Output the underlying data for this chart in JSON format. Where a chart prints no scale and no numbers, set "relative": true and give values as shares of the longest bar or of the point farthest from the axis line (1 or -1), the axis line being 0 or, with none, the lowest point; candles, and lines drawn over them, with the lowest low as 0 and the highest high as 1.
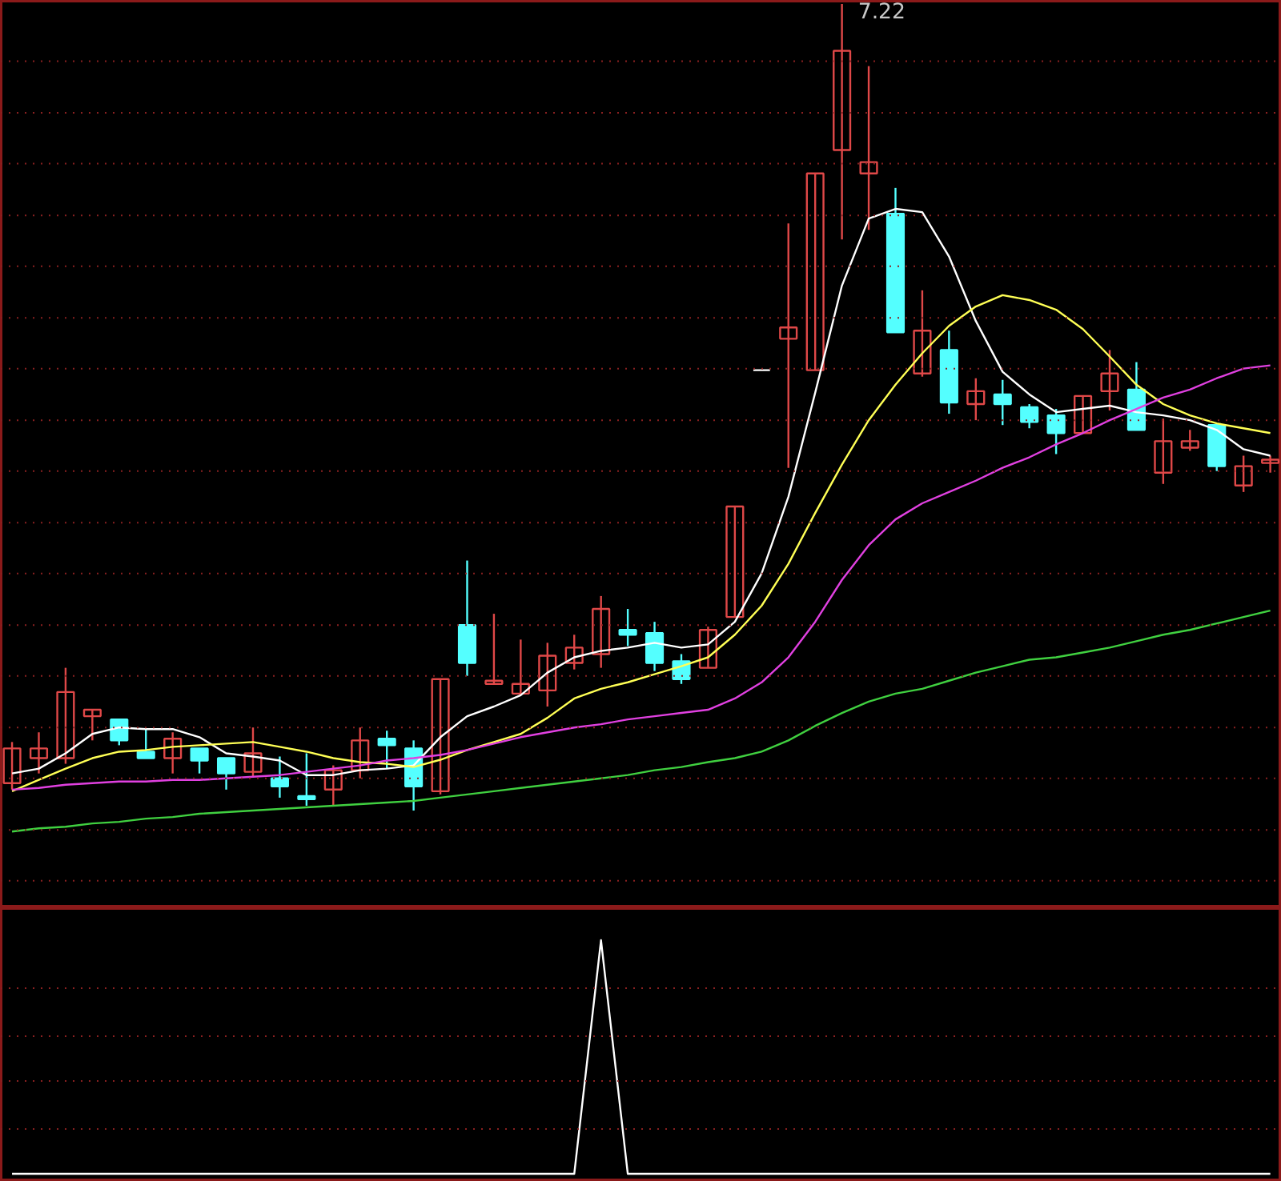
{
  "chart_data": [
    {
      "type": "candlestick",
      "relative": true,
      "ref_lines": [
        {
          "axis": "y",
          "value": -0.087,
          "color": "#8a2020",
          "line_style": "dotted"
        },
        {
          "axis": "y",
          "value": -0.024,
          "color": "#8a2020",
          "line_style": "dotted"
        },
        {
          "axis": "y",
          "value": 0.04,
          "color": "#8a2020",
          "line_style": "dotted"
        },
        {
          "axis": "y",
          "value": 0.103,
          "color": "#8a2020",
          "line_style": "dotted"
        },
        {
          "axis": "y",
          "value": 0.167,
          "color": "#8a2020",
          "line_style": "dotted"
        },
        {
          "axis": "y",
          "value": 0.23,
          "color": "#8a2020",
          "line_style": "dotted"
        },
        {
          "axis": "y",
          "value": 0.294,
          "color": "#8a2020",
          "line_style": "dotted"
        },
        {
          "axis": "y",
          "value": 0.357,
          "color": "#8a2020",
          "line_style": "dotted"
        },
        {
          "axis": "y",
          "value": 0.421,
          "color": "#8a2020",
          "line_style": "dotted"
        },
        {
          "axis": "y",
          "value": 0.484,
          "color": "#8a2020",
          "line_style": "dotted"
        },
        {
          "axis": "y",
          "value": 0.548,
          "color": "#8a2020",
          "line_style": "dotted"
        },
        {
          "axis": "y",
          "value": 0.611,
          "color": "#8a2020",
          "line_style": "dotted"
        },
        {
          "axis": "y",
          "value": 0.675,
          "color": "#8a2020",
          "line_style": "dotted"
        },
        {
          "axis": "y",
          "value": 0.738,
          "color": "#8a2020",
          "line_style": "dotted"
        },
        {
          "axis": "y",
          "value": 0.802,
          "color": "#8a2020",
          "line_style": "dotted"
        },
        {
          "axis": "y",
          "value": 0.865,
          "color": "#8a2020",
          "line_style": "dotted"
        },
        {
          "axis": "y",
          "value": 0.929,
          "color": "#8a2020",
          "line_style": "dotted"
        }
      ],
      "categories": [
        null,
        null,
        null,
        null,
        null,
        null,
        null,
        null,
        null,
        null,
        null,
        null,
        null,
        null,
        null,
        null,
        null,
        null,
        null,
        null,
        null,
        null,
        null,
        null,
        null,
        null,
        null,
        null,
        null,
        null,
        null,
        null,
        null,
        null,
        null,
        null,
        null,
        null,
        null,
        null,
        null,
        null,
        null,
        null,
        null,
        null,
        null,
        null
      ],
      "ohlc": [
        [
          0.034,
          0.085,
          0.026,
          0.077
        ],
        [
          0.065,
          0.097,
          0.046,
          0.077
        ],
        [
          0.065,
          0.177,
          0.058,
          0.147
        ],
        [
          0.117,
          0.125,
          0.087,
          0.125
        ],
        [
          0.113,
          0.113,
          0.081,
          0.087
        ],
        [
          0.073,
          0.101,
          0.065,
          0.065
        ],
        [
          0.065,
          0.097,
          0.046,
          0.089
        ],
        [
          0.077,
          0.077,
          0.046,
          0.062
        ],
        [
          0.065,
          0.065,
          0.026,
          0.046
        ],
        [
          0.048,
          0.103,
          0.042,
          0.071
        ],
        [
          0.04,
          0.067,
          0.016,
          0.03
        ],
        [
          0.018,
          0.071,
          0.006,
          0.014
        ],
        [
          0.026,
          0.056,
          0.006,
          0.05
        ],
        [
          0.05,
          0.103,
          0.04,
          0.087
        ],
        [
          0.089,
          0.099,
          0.052,
          0.081
        ],
        [
          0.077,
          0.087,
          0.0,
          0.03
        ],
        [
          0.024,
          0.163,
          0.02,
          0.163
        ],
        [
          0.23,
          0.31,
          0.167,
          0.183
        ],
        [
          0.157,
          0.244,
          0.157,
          0.161
        ],
        [
          0.145,
          0.212,
          0.145,
          0.157
        ],
        [
          0.149,
          0.208,
          0.129,
          0.192
        ],
        [
          0.183,
          0.218,
          0.175,
          0.202
        ],
        [
          0.194,
          0.266,
          0.177,
          0.25
        ],
        [
          0.224,
          0.25,
          0.204,
          0.218
        ],
        [
          0.22,
          0.234,
          0.173,
          0.183
        ],
        [
          0.185,
          0.194,
          0.157,
          0.163
        ],
        [
          0.177,
          0.228,
          0.177,
          0.224
        ],
        [
          0.24,
          0.377,
          0.24,
          0.377
        ],
        [
          0.546,
          0.546,
          0.546,
          0.546
        ],
        [
          0.585,
          0.728,
          0.425,
          0.599
        ],
        [
          0.546,
          0.79,
          0.546,
          0.79
        ],
        [
          0.819,
          1.0,
          0.708,
          0.942
        ],
        [
          0.79,
          0.923,
          0.72,
          0.804
        ],
        [
          0.74,
          0.772,
          0.593,
          0.593
        ],
        [
          0.542,
          0.645,
          0.538,
          0.595
        ],
        [
          0.571,
          0.595,
          0.492,
          0.506
        ],
        [
          0.504,
          0.536,
          0.484,
          0.52
        ],
        [
          0.516,
          0.534,
          0.478,
          0.504
        ],
        [
          0.5,
          0.504,
          0.474,
          0.482
        ],
        [
          0.49,
          0.498,
          0.442,
          0.468
        ],
        [
          0.468,
          0.514,
          0.468,
          0.514
        ],
        [
          0.52,
          0.571,
          0.496,
          0.542
        ],
        [
          0.522,
          0.556,
          0.472,
          0.472
        ],
        [
          0.419,
          0.486,
          0.405,
          0.458
        ],
        [
          0.45,
          0.472,
          0.446,
          0.458
        ],
        [
          0.478,
          0.478,
          0.421,
          0.427
        ],
        [
          0.403,
          0.44,
          0.395,
          0.427
        ],
        [
          0.431,
          0.44,
          0.419,
          0.435
        ]
      ],
      "series": [
        {
          "type": "line",
          "color": "#ffffff",
          "values": [
            0.046,
            0.052,
            0.071,
            0.095,
            0.103,
            0.101,
            0.101,
            0.091,
            0.071,
            0.067,
            0.062,
            0.044,
            0.044,
            0.05,
            0.052,
            0.056,
            0.091,
            0.117,
            0.129,
            0.143,
            0.171,
            0.19,
            0.198,
            0.202,
            0.208,
            0.202,
            0.206,
            0.234,
            0.294,
            0.389,
            0.518,
            0.651,
            0.734,
            0.746,
            0.742,
            0.687,
            0.607,
            0.544,
            0.516,
            0.494,
            0.498,
            0.502,
            0.494,
            0.49,
            0.484,
            0.472,
            0.448,
            0.44
          ]
        },
        {
          "type": "line",
          "color": "#ffff55",
          "values": [
            0.024,
            0.038,
            0.052,
            0.065,
            0.073,
            0.075,
            0.079,
            0.081,
            0.083,
            0.085,
            0.079,
            0.073,
            0.065,
            0.06,
            0.058,
            0.054,
            0.063,
            0.075,
            0.085,
            0.095,
            0.115,
            0.139,
            0.151,
            0.159,
            0.169,
            0.179,
            0.19,
            0.218,
            0.254,
            0.306,
            0.369,
            0.429,
            0.484,
            0.528,
            0.567,
            0.601,
            0.625,
            0.639,
            0.633,
            0.621,
            0.597,
            0.563,
            0.528,
            0.504,
            0.49,
            0.48,
            0.474,
            0.468
          ]
        },
        {
          "type": "line",
          "color": "#e040e0",
          "values": [
            0.026,
            0.028,
            0.032,
            0.034,
            0.036,
            0.036,
            0.038,
            0.038,
            0.04,
            0.042,
            0.044,
            0.048,
            0.052,
            0.056,
            0.062,
            0.065,
            0.069,
            0.075,
            0.083,
            0.091,
            0.097,
            0.103,
            0.107,
            0.113,
            0.117,
            0.121,
            0.125,
            0.139,
            0.159,
            0.19,
            0.234,
            0.286,
            0.329,
            0.361,
            0.381,
            0.395,
            0.409,
            0.425,
            0.438,
            0.454,
            0.468,
            0.484,
            0.498,
            0.512,
            0.522,
            0.536,
            0.548,
            0.552
          ]
        },
        {
          "type": "line",
          "color": "#40d040",
          "values": [
            -0.026,
            -0.022,
            -0.02,
            -0.016,
            -0.014,
            -0.01,
            -0.008,
            -0.004,
            -0.002,
            0.0,
            0.002,
            0.004,
            0.006,
            0.008,
            0.01,
            0.012,
            0.016,
            0.02,
            0.024,
            0.028,
            0.032,
            0.036,
            0.04,
            0.044,
            0.05,
            0.054,
            0.06,
            0.065,
            0.073,
            0.087,
            0.105,
            0.121,
            0.135,
            0.145,
            0.151,
            0.161,
            0.171,
            0.179,
            0.187,
            0.19,
            0.196,
            0.202,
            0.21,
            0.218,
            0.224,
            0.232,
            0.24,
            0.248
          ]
        }
      ],
      "annotations": [
        "7.22"
      ]
    },
    {
      "type": "line",
      "relative": true,
      "ref_lines": [
        {
          "axis": "y",
          "value": 0.192,
          "color": "#8a2020",
          "line_style": "dotted"
        },
        {
          "axis": "y",
          "value": 0.397,
          "color": "#8a2020",
          "line_style": "dotted"
        },
        {
          "axis": "y",
          "value": 0.589,
          "color": "#8a2020",
          "line_style": "dotted"
        },
        {
          "axis": "y",
          "value": 0.795,
          "color": "#8a2020",
          "line_style": "dotted"
        }
      ],
      "categories": [
        null,
        null,
        null,
        null,
        null,
        null,
        null,
        null,
        null,
        null,
        null,
        null,
        null,
        null,
        null,
        null,
        null,
        null,
        null,
        null,
        null,
        null,
        null,
        null,
        null,
        null,
        null,
        null,
        null,
        null,
        null,
        null,
        null,
        null,
        null,
        null,
        null,
        null,
        null,
        null,
        null,
        null,
        null,
        null,
        null,
        null,
        null,
        null
      ],
      "series": [
        {
          "color": "#ffffff",
          "values": [
            0,
            0,
            0,
            0,
            0,
            0,
            0,
            0,
            0,
            0,
            0,
            0,
            0,
            0,
            0,
            0,
            0,
            0,
            0,
            0,
            0,
            0,
            1,
            0,
            0,
            0,
            0,
            0,
            0,
            0,
            0,
            0,
            0,
            0,
            0,
            0,
            0,
            0,
            0,
            0,
            0,
            0,
            0,
            0,
            0,
            0,
            0,
            0
          ]
        }
      ]
    }
  ]
}
